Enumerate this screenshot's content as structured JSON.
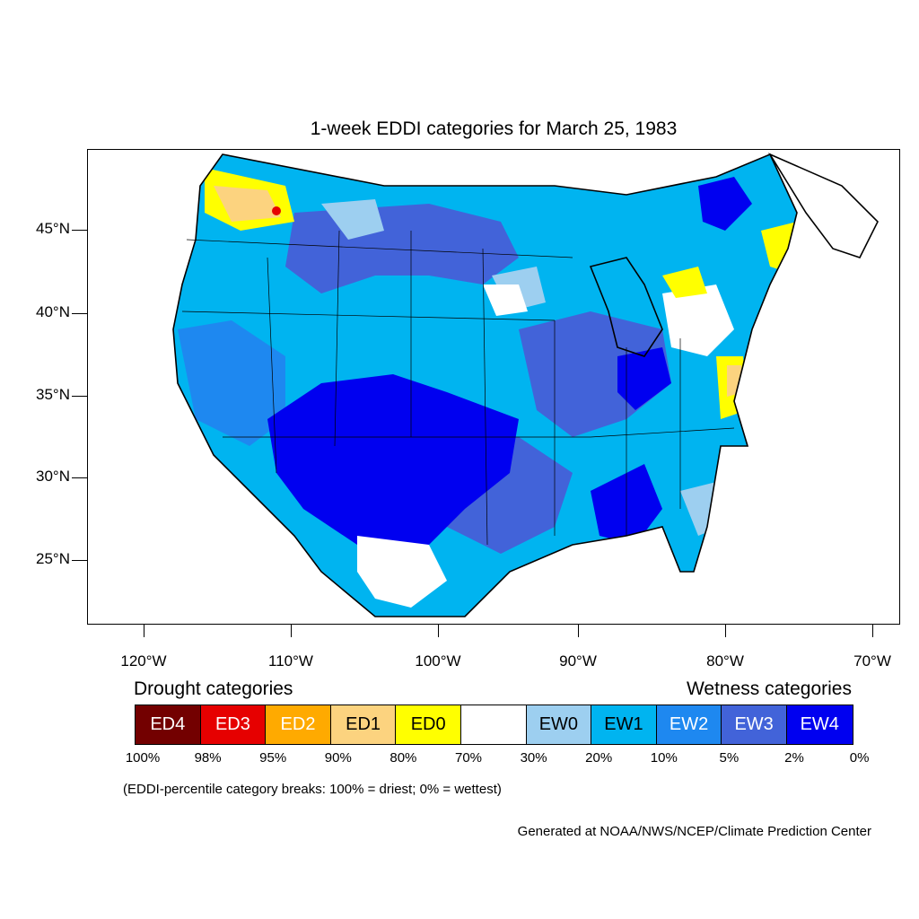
{
  "title": "1-week EDDI categories for March 25, 1983",
  "latitude_labels": [
    "45°N",
    "40°N",
    "35°N",
    "30°N",
    "25°N"
  ],
  "longitude_labels": [
    "120°W",
    "110°W",
    "100°W",
    "90°W",
    "80°W",
    "70°W"
  ],
  "legend": {
    "drought_heading": "Drought categories",
    "wetness_heading": "Wetness categories",
    "categories": [
      {
        "label": "ED4",
        "color": "#730000",
        "text_color": "#ffffff"
      },
      {
        "label": "ED3",
        "color": "#e60000",
        "text_color": "#ffffff"
      },
      {
        "label": "ED2",
        "color": "#ffaa00",
        "text_color": "#ffffff"
      },
      {
        "label": "ED1",
        "color": "#fcd37f",
        "text_color": "#000000"
      },
      {
        "label": "ED0",
        "color": "#ffff00",
        "text_color": "#000000"
      },
      {
        "label": "",
        "color": "#ffffff",
        "text_color": "#000000"
      },
      {
        "label": "EW0",
        "color": "#9dcff0",
        "text_color": "#000000"
      },
      {
        "label": "EW1",
        "color": "#00b4f0",
        "text_color": "#000000"
      },
      {
        "label": "EW2",
        "color": "#1e88f0",
        "text_color": "#ffffff"
      },
      {
        "label": "EW3",
        "color": "#4263d9",
        "text_color": "#ffffff"
      },
      {
        "label": "EW4",
        "color": "#0000f0",
        "text_color": "#ffffff"
      }
    ],
    "percentile_breaks": [
      "100%",
      "98%",
      "95%",
      "90%",
      "80%",
      "70%",
      "30%",
      "20%",
      "10%",
      "5%",
      "2%",
      "0%"
    ]
  },
  "note": "(EDDI-percentile category breaks: 100% = driest; 0% = wettest)",
  "credit": "Generated at NOAA/NWS/NCEP/Climate Prediction Center"
}
